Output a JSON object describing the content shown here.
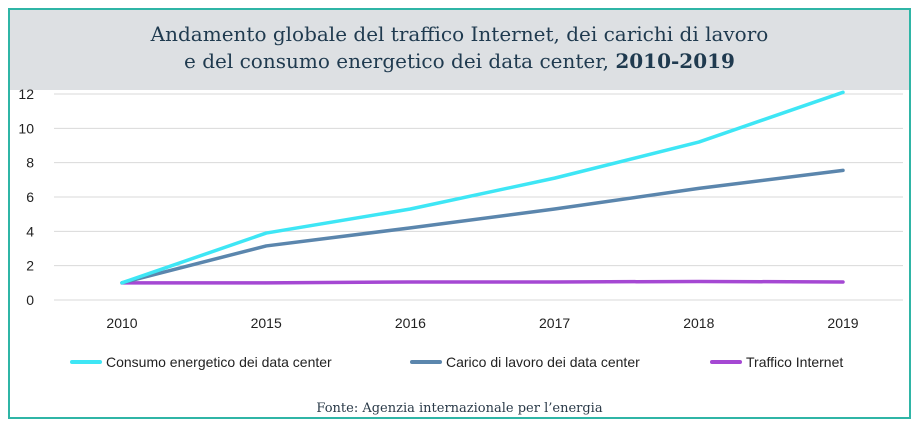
{
  "title": {
    "line1": "Andamento globale del traffico Internet, dei carichi di lavoro",
    "line2_prefix": "e del consumo energetico dei data center, ",
    "line2_bold": "2010-2019"
  },
  "source": "Fonte: Agenzia internazionale per l’energia",
  "colors": {
    "frame": "#2fb5a6",
    "title_band": "#dde0e3",
    "grid": "#d9d9d9"
  },
  "chart_data": {
    "type": "line",
    "categories": [
      "2010",
      "2015",
      "2016",
      "2017",
      "2018",
      "2019"
    ],
    "ylim": [
      0,
      12
    ],
    "yticks": [
      "0",
      "2",
      "4",
      "6",
      "8",
      "10",
      "12"
    ],
    "grid": true,
    "legend_position": "bottom",
    "series": [
      {
        "name": "Consumo energetico dei data center",
        "color": "#3ee6f5",
        "values": [
          1.0,
          3.9,
          5.3,
          7.1,
          9.2,
          12.1
        ]
      },
      {
        "name": "Carico di lavoro dei data center",
        "color": "#5b86ad",
        "values": [
          1.0,
          3.15,
          4.2,
          5.3,
          6.5,
          7.55
        ]
      },
      {
        "name": "Traffico Internet",
        "color": "#a548d3",
        "values": [
          1.0,
          1.0,
          1.05,
          1.05,
          1.08,
          1.05
        ]
      }
    ]
  }
}
